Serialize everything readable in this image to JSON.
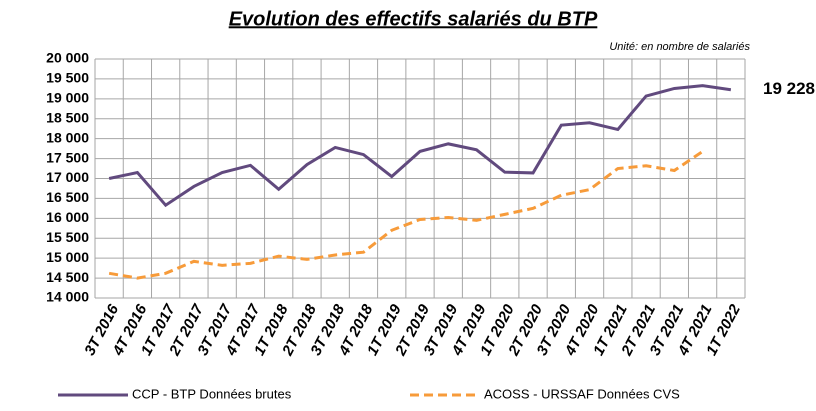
{
  "chart_data": {
    "type": "line",
    "title": "Evolution des effectifs salariés du BTP",
    "subtitle": "Unité: en nombre de salariés",
    "categories": [
      "3T 2016",
      "4T 2016",
      "1T 2017",
      "2T 2017",
      "3T 2017",
      "4T 2017",
      "1T 2018",
      "2T 2018",
      "3T 2018",
      "4T 2018",
      "1T 2019",
      "2T 2019",
      "3T 2019",
      "4T 2019",
      "1T 2020",
      "2T 2020",
      "3T 2020",
      "4T 2020",
      "1T 2021",
      "2T 2021",
      "3T 2021",
      "4T 2021",
      "1T 2022"
    ],
    "series": [
      {
        "name": "CCP - BTP Données brutes",
        "color": "#614a7e",
        "dash": false,
        "values": [
          17000,
          17150,
          16330,
          16800,
          17150,
          17330,
          16730,
          17350,
          17780,
          17600,
          17050,
          17680,
          17870,
          17720,
          17160,
          17140,
          18340,
          18400,
          18230,
          19070,
          19260,
          19330,
          19228
        ],
        "value_labels": [
          null,
          null,
          null,
          null,
          null,
          null,
          null,
          null,
          null,
          null,
          null,
          null,
          null,
          null,
          null,
          null,
          null,
          null,
          null,
          null,
          null,
          null,
          "19 228"
        ]
      },
      {
        "name": "ACOSS - URSSAF Données CVS",
        "color": "#f79b3a",
        "dash": true,
        "values": [
          14620,
          14500,
          14620,
          14920,
          14820,
          14870,
          15050,
          14970,
          15080,
          15150,
          15700,
          15970,
          16020,
          15950,
          16100,
          16250,
          16580,
          16720,
          17250,
          17320,
          17200,
          17680,
          null
        ]
      }
    ],
    "ylim": [
      14000,
      20000
    ],
    "yticks": [
      {
        "value": 14000,
        "label": "14 000"
      },
      {
        "value": 14500,
        "label": "14 500"
      },
      {
        "value": 15000,
        "label": "15 000"
      },
      {
        "value": 15500,
        "label": "15 500"
      },
      {
        "value": 16000,
        "label": "16 000"
      },
      {
        "value": 16500,
        "label": "16 500"
      },
      {
        "value": 17000,
        "label": "17 000"
      },
      {
        "value": 17500,
        "label": "17 500"
      },
      {
        "value": 18000,
        "label": "18 000"
      },
      {
        "value": 18500,
        "label": "18 500"
      },
      {
        "value": 19000,
        "label": "19 000"
      },
      {
        "value": 19500,
        "label": "19 500"
      },
      {
        "value": 20000,
        "label": "20 000"
      }
    ],
    "grid": true,
    "legend": "bottom"
  }
}
